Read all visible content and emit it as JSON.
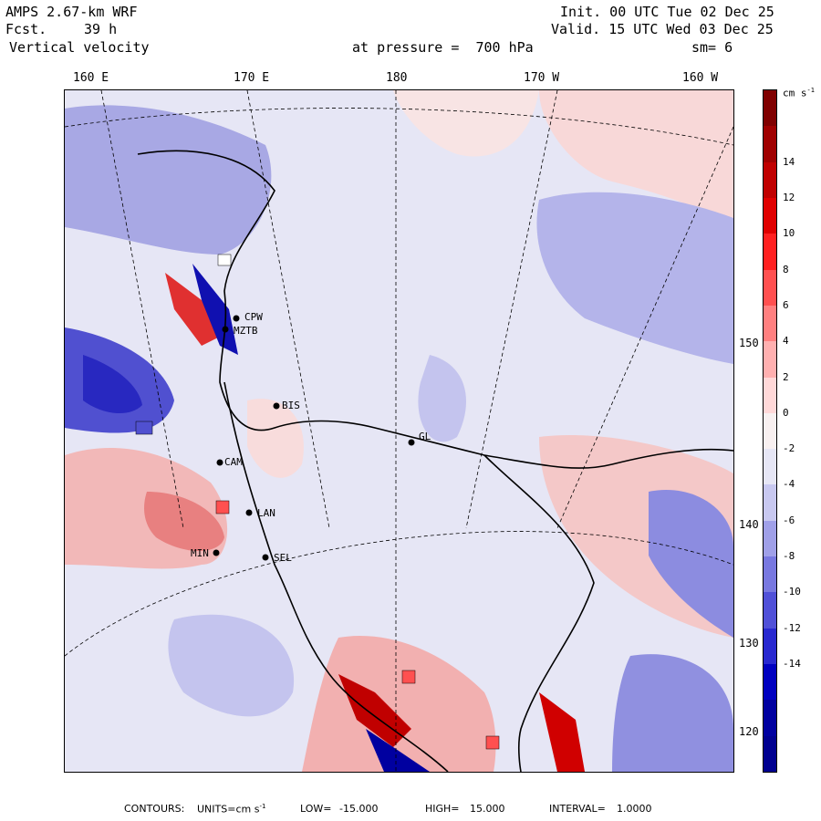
{
  "header": {
    "model": "AMPS 2.67-km WRF",
    "fcst_label": "Fcst.",
    "fcst_value": "39 h",
    "field": "Vertical velocity",
    "init": "Init. 00 UTC Tue 02 Dec 25",
    "valid": "Valid. 15 UTC Wed 03 Dec 25",
    "pressure": "at pressure =  700 hPa",
    "smoothing": "sm= 6"
  },
  "longitude_labels": [
    "160 E",
    "170 E",
    "180",
    "170 W",
    "160 W"
  ],
  "latitude_labels": [
    "150 W",
    "140 W",
    "130 W",
    "120 W"
  ],
  "stations": [
    "CPW",
    "MZTB",
    "BIS",
    "GL",
    "CAM",
    "LAN",
    "MIN",
    "SEL"
  ],
  "colorbar": {
    "units": "cm s",
    "units_exp": "-1",
    "labels": [
      "14",
      "12",
      "10",
      "8",
      "6",
      "4",
      "2",
      "0",
      "-2",
      "-4",
      "-6",
      "-8",
      "-10",
      "-12",
      "-14"
    ],
    "colors": [
      "#800000",
      "#a00000",
      "#c00000",
      "#e00000",
      "#ff2020",
      "#ff5050",
      "#ff8080",
      "#ffb0b0",
      "#ffd8d8",
      "#f8f0f0",
      "#e6e6f5",
      "#c8c8f0",
      "#a0a0e8",
      "#7878e0",
      "#5050d8",
      "#2828d0",
      "#0000c0",
      "#0000a0",
      "#000090"
    ]
  },
  "footer": {
    "contours": "CONTOURS:",
    "units_label": "UNITS=cm s",
    "units_exp": "-1",
    "low_label": "LOW=",
    "low": "-15.000",
    "high_label": "HIGH=",
    "high": "15.000",
    "interval_label": "INTERVAL=",
    "interval": "1.0000"
  }
}
